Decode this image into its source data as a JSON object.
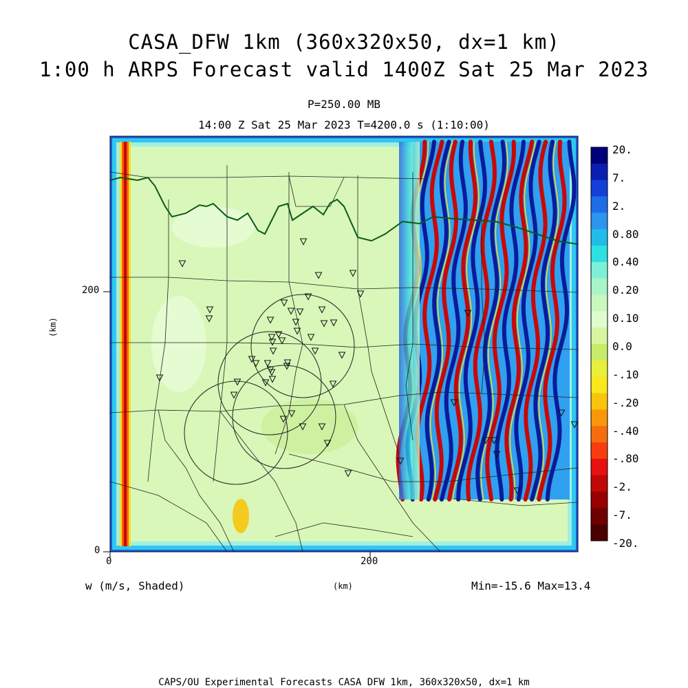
{
  "title": {
    "line1": "CASA_DFW 1km (360x320x50, dx=1 km)",
    "line2": "1:00 h ARPS Forecast valid 1400Z Sat 25 Mar 2023"
  },
  "subtitle": {
    "level": "P=250.00 MB",
    "time": "14:00 Z Sat 25 Mar 2023   T=4200.0 s (1:10:00)"
  },
  "axes": {
    "x_label": "(km)",
    "y_label": "(km)",
    "x_ticks": [
      "0",
      "200"
    ],
    "y_ticks": [
      "0",
      "200"
    ]
  },
  "field_label": "w (m/s, Shaded)",
  "min_max": "Min=-15.6  Max=13.4",
  "colorbar": {
    "labels": [
      "20.",
      "7.",
      "2.",
      "0.80",
      "0.40",
      "0.20",
      "0.10",
      "0.0",
      "-.10",
      "-.20",
      "-.40",
      "-.80",
      "-2.",
      "-7.",
      "-20."
    ],
    "colors": [
      "#00007a",
      "#0a1fb0",
      "#1440d8",
      "#1c6ee8",
      "#2b95f0",
      "#22bce8",
      "#2ee0e0",
      "#7ff0d8",
      "#a8f5c8",
      "#c8f7c0",
      "#e0fbd0",
      "#d8f5a0",
      "#c8ec6a",
      "#e8f03c",
      "#f8e81c",
      "#f8c40c",
      "#f89808",
      "#f86c10",
      "#f83c10",
      "#e81010",
      "#c00808",
      "#980000",
      "#700000",
      "#4a0000"
    ]
  },
  "footer": "CAPS/OU Experimental Forecasts  CASA DFW 1km, 360x320x50, dx=1 km"
}
